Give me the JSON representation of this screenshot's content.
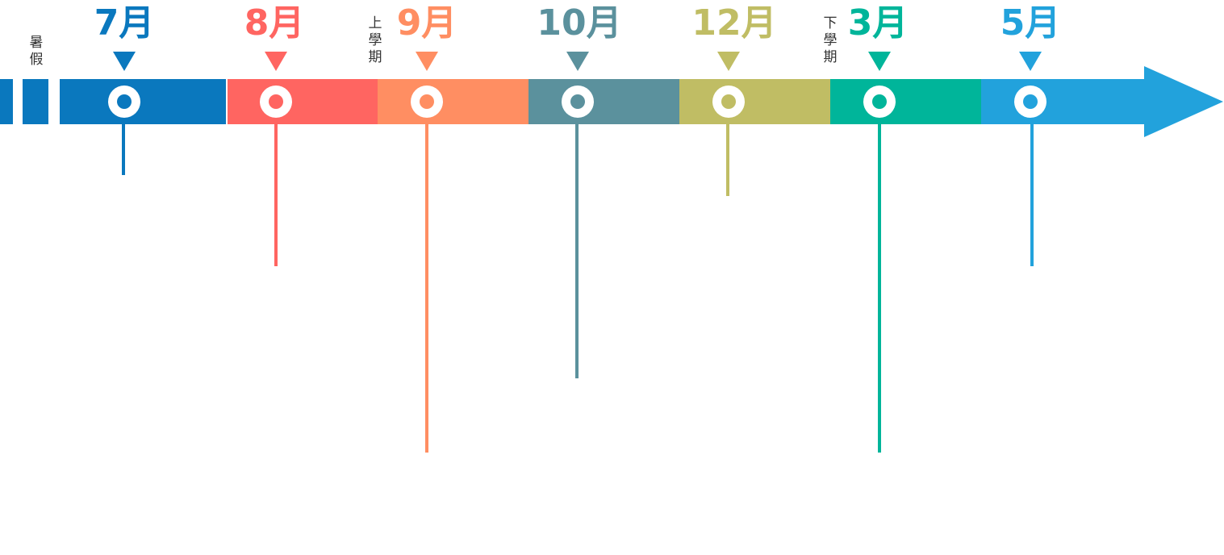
{
  "periods": [
    {
      "label": "暑假"
    },
    {
      "label": "上學期"
    },
    {
      "label": "下學期"
    }
  ],
  "milestones": [
    {
      "month": "7月",
      "color": "#0a78be"
    },
    {
      "month": "8月",
      "color": "#ff6561"
    },
    {
      "month": "9月",
      "color": "#ff8e62"
    },
    {
      "month": "10月",
      "color": "#5b919d"
    },
    {
      "month": "12月",
      "color": "#c0bd64"
    },
    {
      "month": "3月",
      "color": "#00b59a"
    },
    {
      "month": "5月",
      "color": "#22a2dc"
    }
  ],
  "arrow_color": "#22a2dc"
}
